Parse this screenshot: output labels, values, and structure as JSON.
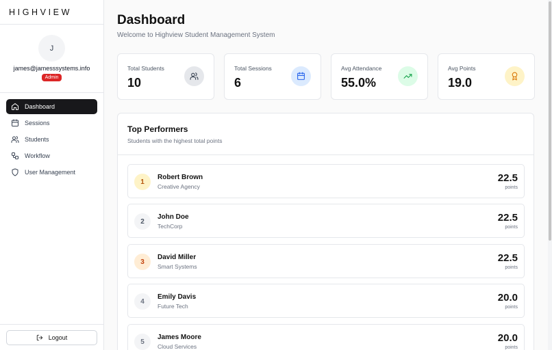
{
  "sidebar": {
    "logo": "HIGHVIEW",
    "profile": {
      "initial": "J",
      "email": "james@jamesssystems.info",
      "role": "Admin"
    },
    "nav": [
      {
        "label": "Dashboard",
        "icon": "home-icon",
        "active": true
      },
      {
        "label": "Sessions",
        "icon": "calendar-icon"
      },
      {
        "label": "Students",
        "icon": "users-icon"
      },
      {
        "label": "Workflow",
        "icon": "workflow-icon"
      },
      {
        "label": "User Management",
        "icon": "shield-icon"
      }
    ],
    "logout": "Logout"
  },
  "header": {
    "title": "Dashboard",
    "subtitle": "Welcome to Highview Student Management System"
  },
  "stats": [
    {
      "label": "Total Students",
      "value": "10",
      "icon": "users-icon",
      "color": "#e5e7eb"
    },
    {
      "label": "Total Sessions",
      "value": "6",
      "icon": "calendar-icon",
      "color": "#dbeafe"
    },
    {
      "label": "Avg Attendance",
      "value": "55.0%",
      "icon": "trending-up-icon",
      "color": "#dcfce7"
    },
    {
      "label": "Avg Points",
      "value": "19.0",
      "icon": "award-icon",
      "color": "#fef3c7"
    }
  ],
  "top_performers": {
    "title": "Top Performers",
    "subtitle": "Students with the highest total points",
    "unit": "points",
    "rows": [
      {
        "rank": "1",
        "name": "Robert Brown",
        "company": "Creative Agency",
        "points": "22.5",
        "rank_bg": "#fef3c7",
        "rank_color": "#b45309"
      },
      {
        "rank": "2",
        "name": "John Doe",
        "company": "TechCorp",
        "points": "22.5",
        "rank_bg": "#f3f4f6",
        "rank_color": "#4b5563"
      },
      {
        "rank": "3",
        "name": "David Miller",
        "company": "Smart Systems",
        "points": "22.5",
        "rank_bg": "#ffedd5",
        "rank_color": "#c2410c"
      },
      {
        "rank": "4",
        "name": "Emily Davis",
        "company": "Future Tech",
        "points": "20.0",
        "rank_bg": "#f3f4f6",
        "rank_color": "#6b7280"
      },
      {
        "rank": "5",
        "name": "James Moore",
        "company": "Cloud Services",
        "points": "20.0",
        "rank_bg": "#f3f4f6",
        "rank_color": "#6b7280"
      }
    ]
  },
  "colors": {
    "active_nav": "#18181b",
    "admin_badge": "#dc2626"
  }
}
